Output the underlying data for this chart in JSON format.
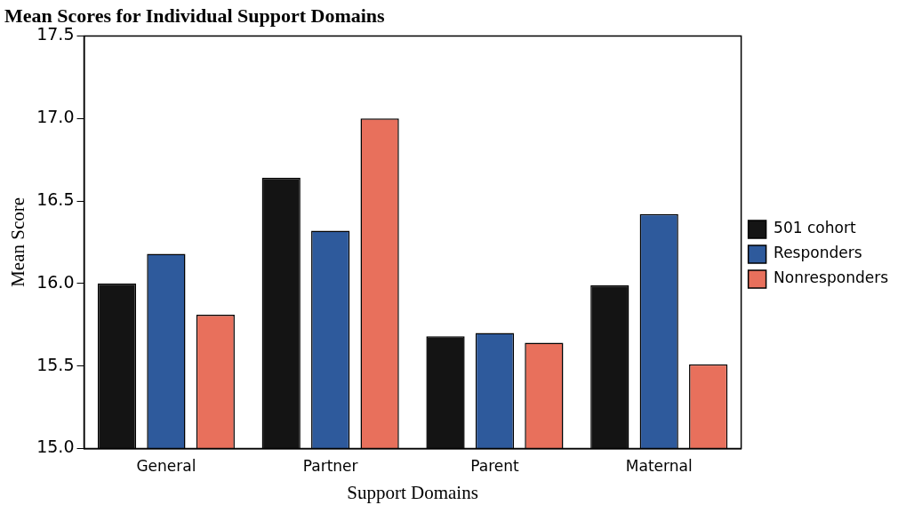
{
  "chart_data": {
    "type": "bar",
    "title": "Mean Scores for Individual Support Domains",
    "xlabel": "Support Domains",
    "ylabel": "Mean Score",
    "categories": [
      "General",
      "Partner",
      "Parent",
      "Maternal"
    ],
    "series": [
      {
        "name": "501 cohort",
        "color": "#141414",
        "values": [
          16.0,
          16.64,
          15.68,
          15.99
        ]
      },
      {
        "name": "Responders",
        "color": "#2e5a9c",
        "values": [
          16.18,
          16.32,
          15.7,
          16.42
        ]
      },
      {
        "name": "Nonresponders",
        "color": "#e8705c",
        "values": [
          15.81,
          17.0,
          15.64,
          15.51
        ]
      }
    ],
    "ylim": [
      15.0,
      17.5
    ],
    "yticks": [
      {
        "value": 15,
        "label": "15.0"
      },
      {
        "value": 15.5,
        "label": "15.5"
      },
      {
        "value": 16,
        "label": "16.0"
      },
      {
        "value": 16.5,
        "label": "16.5"
      },
      {
        "value": 17,
        "label": "17.0"
      },
      {
        "value": 17.5,
        "label": "17.5"
      }
    ],
    "grid": false,
    "legend": "right"
  }
}
